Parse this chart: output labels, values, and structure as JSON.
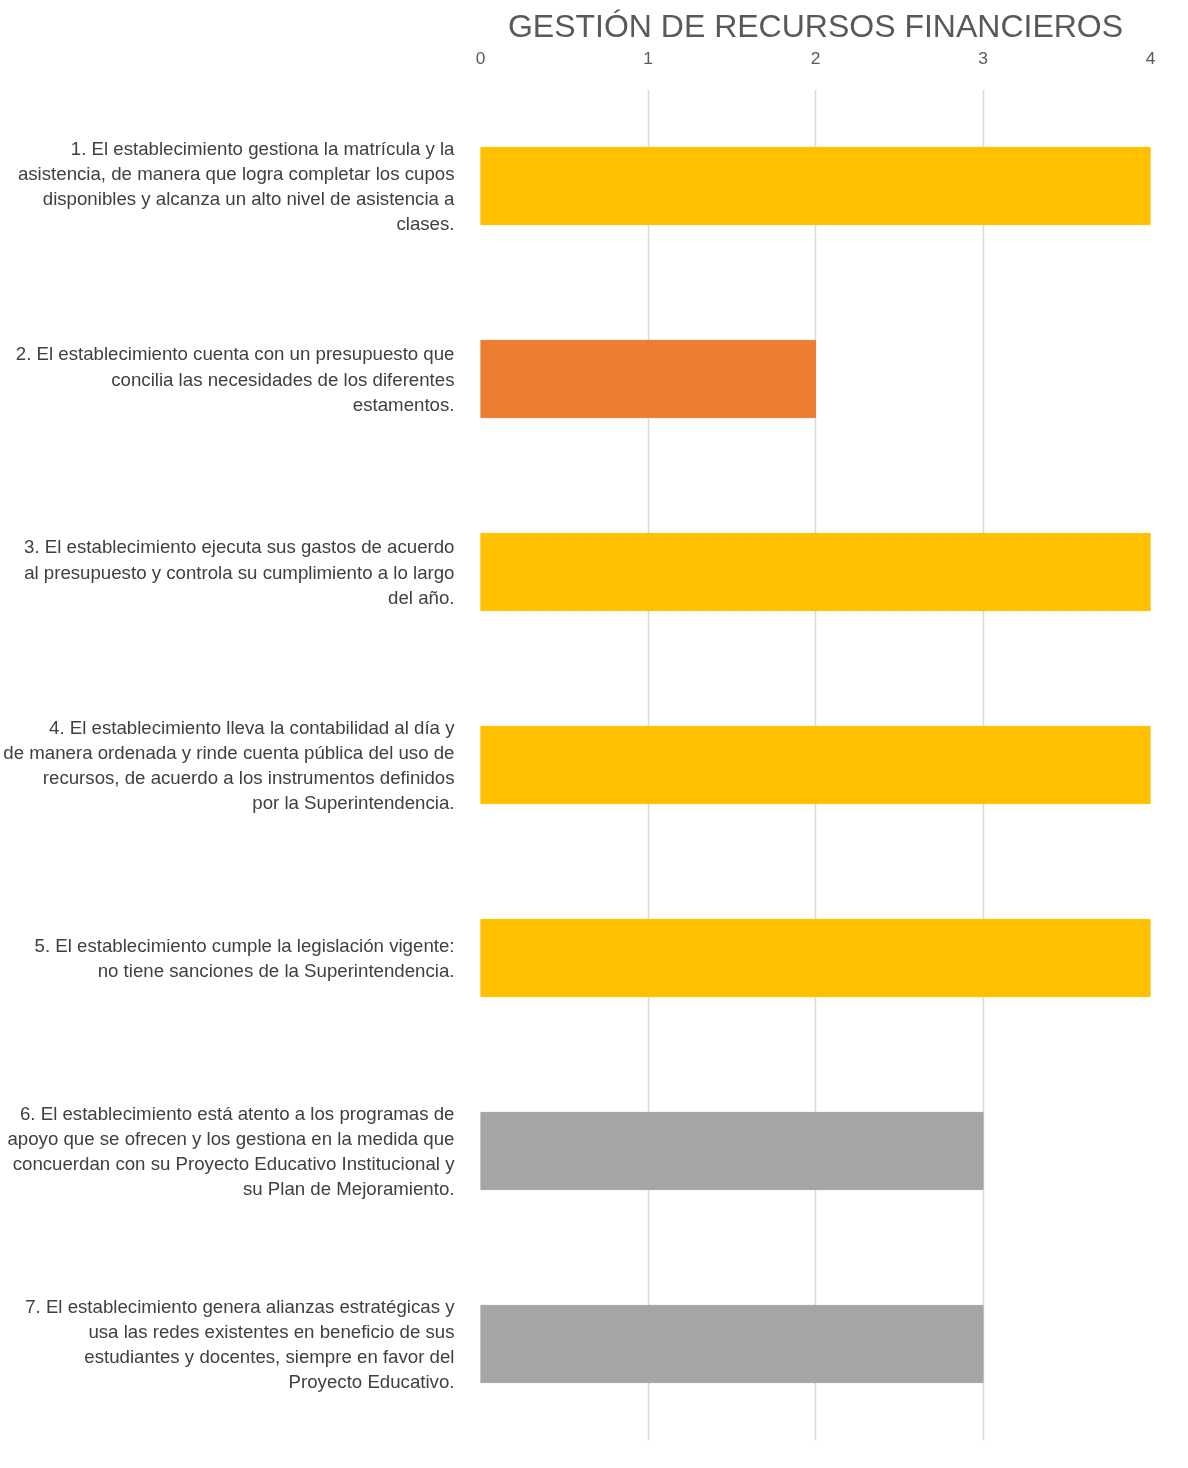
{
  "chart_data": {
    "type": "bar",
    "orientation": "horizontal",
    "title": "GESTIÓN DE RECURSOS FINANCIEROS",
    "categories": [
      "1. El establecimiento gestiona la matrícula y la asistencia, de manera que logra completar los cupos disponibles y alcanza un alto nivel de asistencia a clases.",
      "2. El establecimiento cuenta con un presupuesto que concilia las necesidades de los diferentes estamentos.",
      "3. El establecimiento ejecuta sus gastos de acuerdo al presupuesto y controla su cumplimiento a lo largo del año.",
      "4. El establecimiento lleva la contabilidad al día y de manera ordenada y rinde cuenta pública del uso de recursos, de acuerdo a los instrumentos definidos por la Superintendencia.",
      "5. El establecimiento cumple la legislación vigente: no tiene sanciones de la Superintendencia.",
      "6. El establecimiento está atento a los programas de apoyo que se ofrecen y los gestiona en la medida que concuerdan con su Proyecto Educativo Institucional y su Plan de Mejoramiento.",
      "7. El establecimiento genera alianzas estratégicas y usa las redes existentes en beneficio de sus estudiantes y docentes, siempre en favor del Proyecto Educativo."
    ],
    "values": [
      4,
      2,
      4,
      4,
      4,
      3,
      3
    ],
    "colors": [
      "#ffc000",
      "#ed7d31",
      "#ffc000",
      "#ffc000",
      "#ffc000",
      "#a5a5a5",
      "#a5a5a5"
    ],
    "xlim": [
      0,
      4
    ],
    "xticks": [
      0,
      1,
      2,
      3,
      4
    ],
    "grid": "x"
  }
}
